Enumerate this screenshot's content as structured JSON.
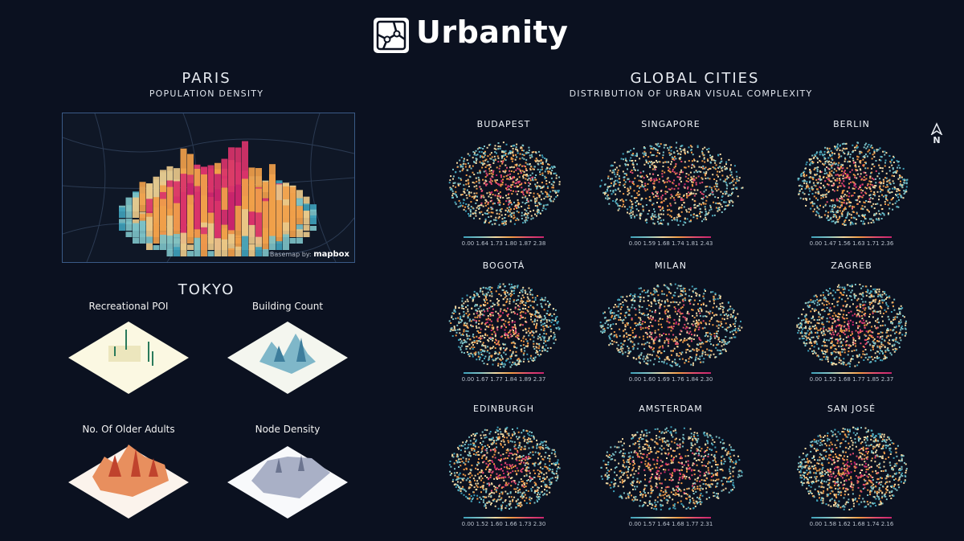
{
  "header": {
    "brand": "Urbanity"
  },
  "paris": {
    "title": "PARIS",
    "subtitle": "POPULATION DENSITY",
    "attribution_prefix": "Basemap by:",
    "attribution_brand": "mapbox"
  },
  "tokyo": {
    "title": "TOKYO",
    "panels": [
      {
        "label": "Recreational POI"
      },
      {
        "label": "Building Count"
      },
      {
        "label": "No. Of Older Adults"
      },
      {
        "label": "Node Density"
      }
    ]
  },
  "global": {
    "title": "GLOBAL CITIES",
    "subtitle": "DISTRIBUTION OF URBAN VISUAL COMPLEXITY",
    "north_label": "N",
    "cities": [
      {
        "name": "BUDAPEST",
        "legend": "0.00 1.64 1.73 1.80 1.87 2.38"
      },
      {
        "name": "SINGAPORE",
        "legend": "0.00 1.59 1.68 1.74 1.81 2.43"
      },
      {
        "name": "BERLIN",
        "legend": "0.00 1.47 1.56 1.63 1.71 2.36"
      },
      {
        "name": "BOGOTÁ",
        "legend": "0.00 1.67 1.77 1.84 1.89 2.37"
      },
      {
        "name": "MILAN",
        "legend": "0.00 1.60 1.69 1.76 1.84 2.30"
      },
      {
        "name": "ZAGREB",
        "legend": "0.00 1.52 1.68 1.77 1.85 2.37"
      },
      {
        "name": "EDINBURGH",
        "legend": "0.00 1.52 1.60 1.66 1.73 2.30"
      },
      {
        "name": "AMSTERDAM",
        "legend": "0.00 1.57 1.64 1.68 1.77 2.31"
      },
      {
        "name": "SAN JOSÉ",
        "legend": "0.00 1.58 1.62 1.68 1.74 2.16"
      }
    ]
  },
  "colors": {
    "background": "#0b1120",
    "palette": [
      "#3ea0b8",
      "#7cc1c6",
      "#f1d9a3",
      "#f09a45",
      "#e24a70",
      "#c8246d"
    ]
  }
}
